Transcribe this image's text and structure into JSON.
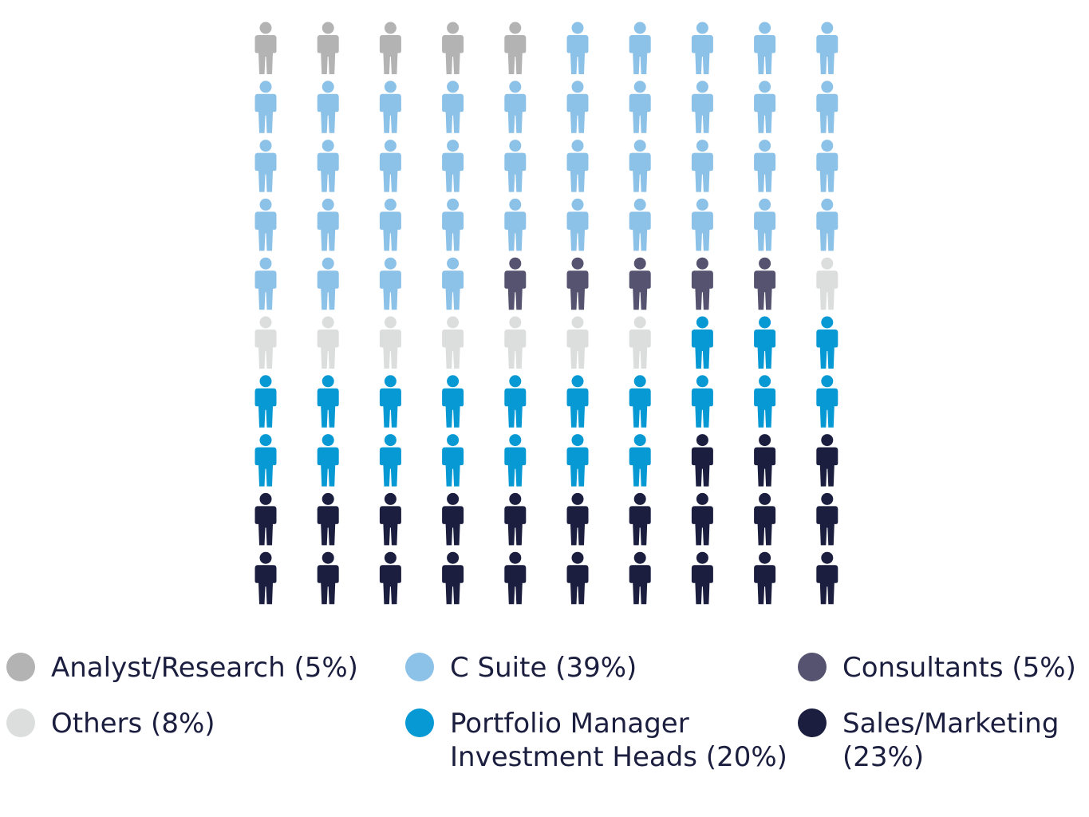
{
  "chart_data": {
    "type": "pictogram",
    "title": "",
    "icon": "person-icon",
    "grid": {
      "rows": 10,
      "columns": 10
    },
    "categories": [
      {
        "label": "Analyst/Research (5%)",
        "value": 5,
        "color": "#b3b3b3"
      },
      {
        "label": "C Suite (39%)",
        "value": 39,
        "color": "#8cc1e8"
      },
      {
        "label": "Consultants (5%)",
        "value": 5,
        "color": "#555370"
      },
      {
        "label": "Others (8%)",
        "value": 8,
        "color": "#dcdddd"
      },
      {
        "label": "Portfolio Manager Investment Heads (20%)",
        "value": 20,
        "color": "#0799d4"
      },
      {
        "label": "Sales/Marketing (23%)",
        "value": 23,
        "color": "#1b1e3f"
      }
    ]
  },
  "legend": [
    {
      "lines": [
        "Analyst/Research (5%)"
      ],
      "color": "#b3b3b3"
    },
    {
      "lines": [
        "C Suite (39%)"
      ],
      "color": "#8cc1e8"
    },
    {
      "lines": [
        "Consultants (5%)"
      ],
      "color": "#555370"
    },
    {
      "lines": [
        "Others (8%)"
      ],
      "color": "#dcdddd"
    },
    {
      "lines": [
        "Portfolio Manager",
        "Investment Heads (20%)"
      ],
      "color": "#0799d4"
    },
    {
      "lines": [
        "Sales/Marketing",
        "(23%)"
      ],
      "color": "#1b1e3f"
    }
  ]
}
